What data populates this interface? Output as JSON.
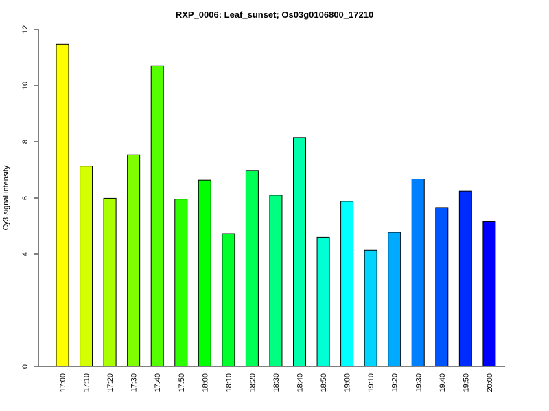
{
  "chart_data": {
    "type": "bar",
    "title": "RXP_0006: Leaf_sunset; Os03g0106800_17210",
    "xlabel": "",
    "ylabel": "Cy3 signal intensity",
    "ylim": [
      0,
      12
    ],
    "yticks": [
      0,
      4,
      6,
      8,
      10,
      12
    ],
    "grid": false,
    "categories": [
      "17:00",
      "17:10",
      "17:20",
      "17:30",
      "17:40",
      "17:50",
      "18:00",
      "18:10",
      "18:20",
      "18:30",
      "18:40",
      "18:50",
      "19:00",
      "19:10",
      "19:20",
      "19:30",
      "19:40",
      "19:50",
      "20:00"
    ],
    "values": [
      11.48,
      7.13,
      5.99,
      7.53,
      10.7,
      5.96,
      6.63,
      4.73,
      6.98,
      6.1,
      8.15,
      4.6,
      5.88,
      4.14,
      4.78,
      6.67,
      5.66,
      6.24,
      5.16
    ],
    "colors": [
      "#ffff00",
      "#d4ff00",
      "#aaff00",
      "#80ff00",
      "#55ff00",
      "#2bff00",
      "#00ff00",
      "#00ff2b",
      "#00ff55",
      "#00ff80",
      "#00ffaa",
      "#00ffd4",
      "#00ffff",
      "#00d4ff",
      "#00aaff",
      "#0080ff",
      "#0055ff",
      "#002bff",
      "#0000ff"
    ]
  }
}
